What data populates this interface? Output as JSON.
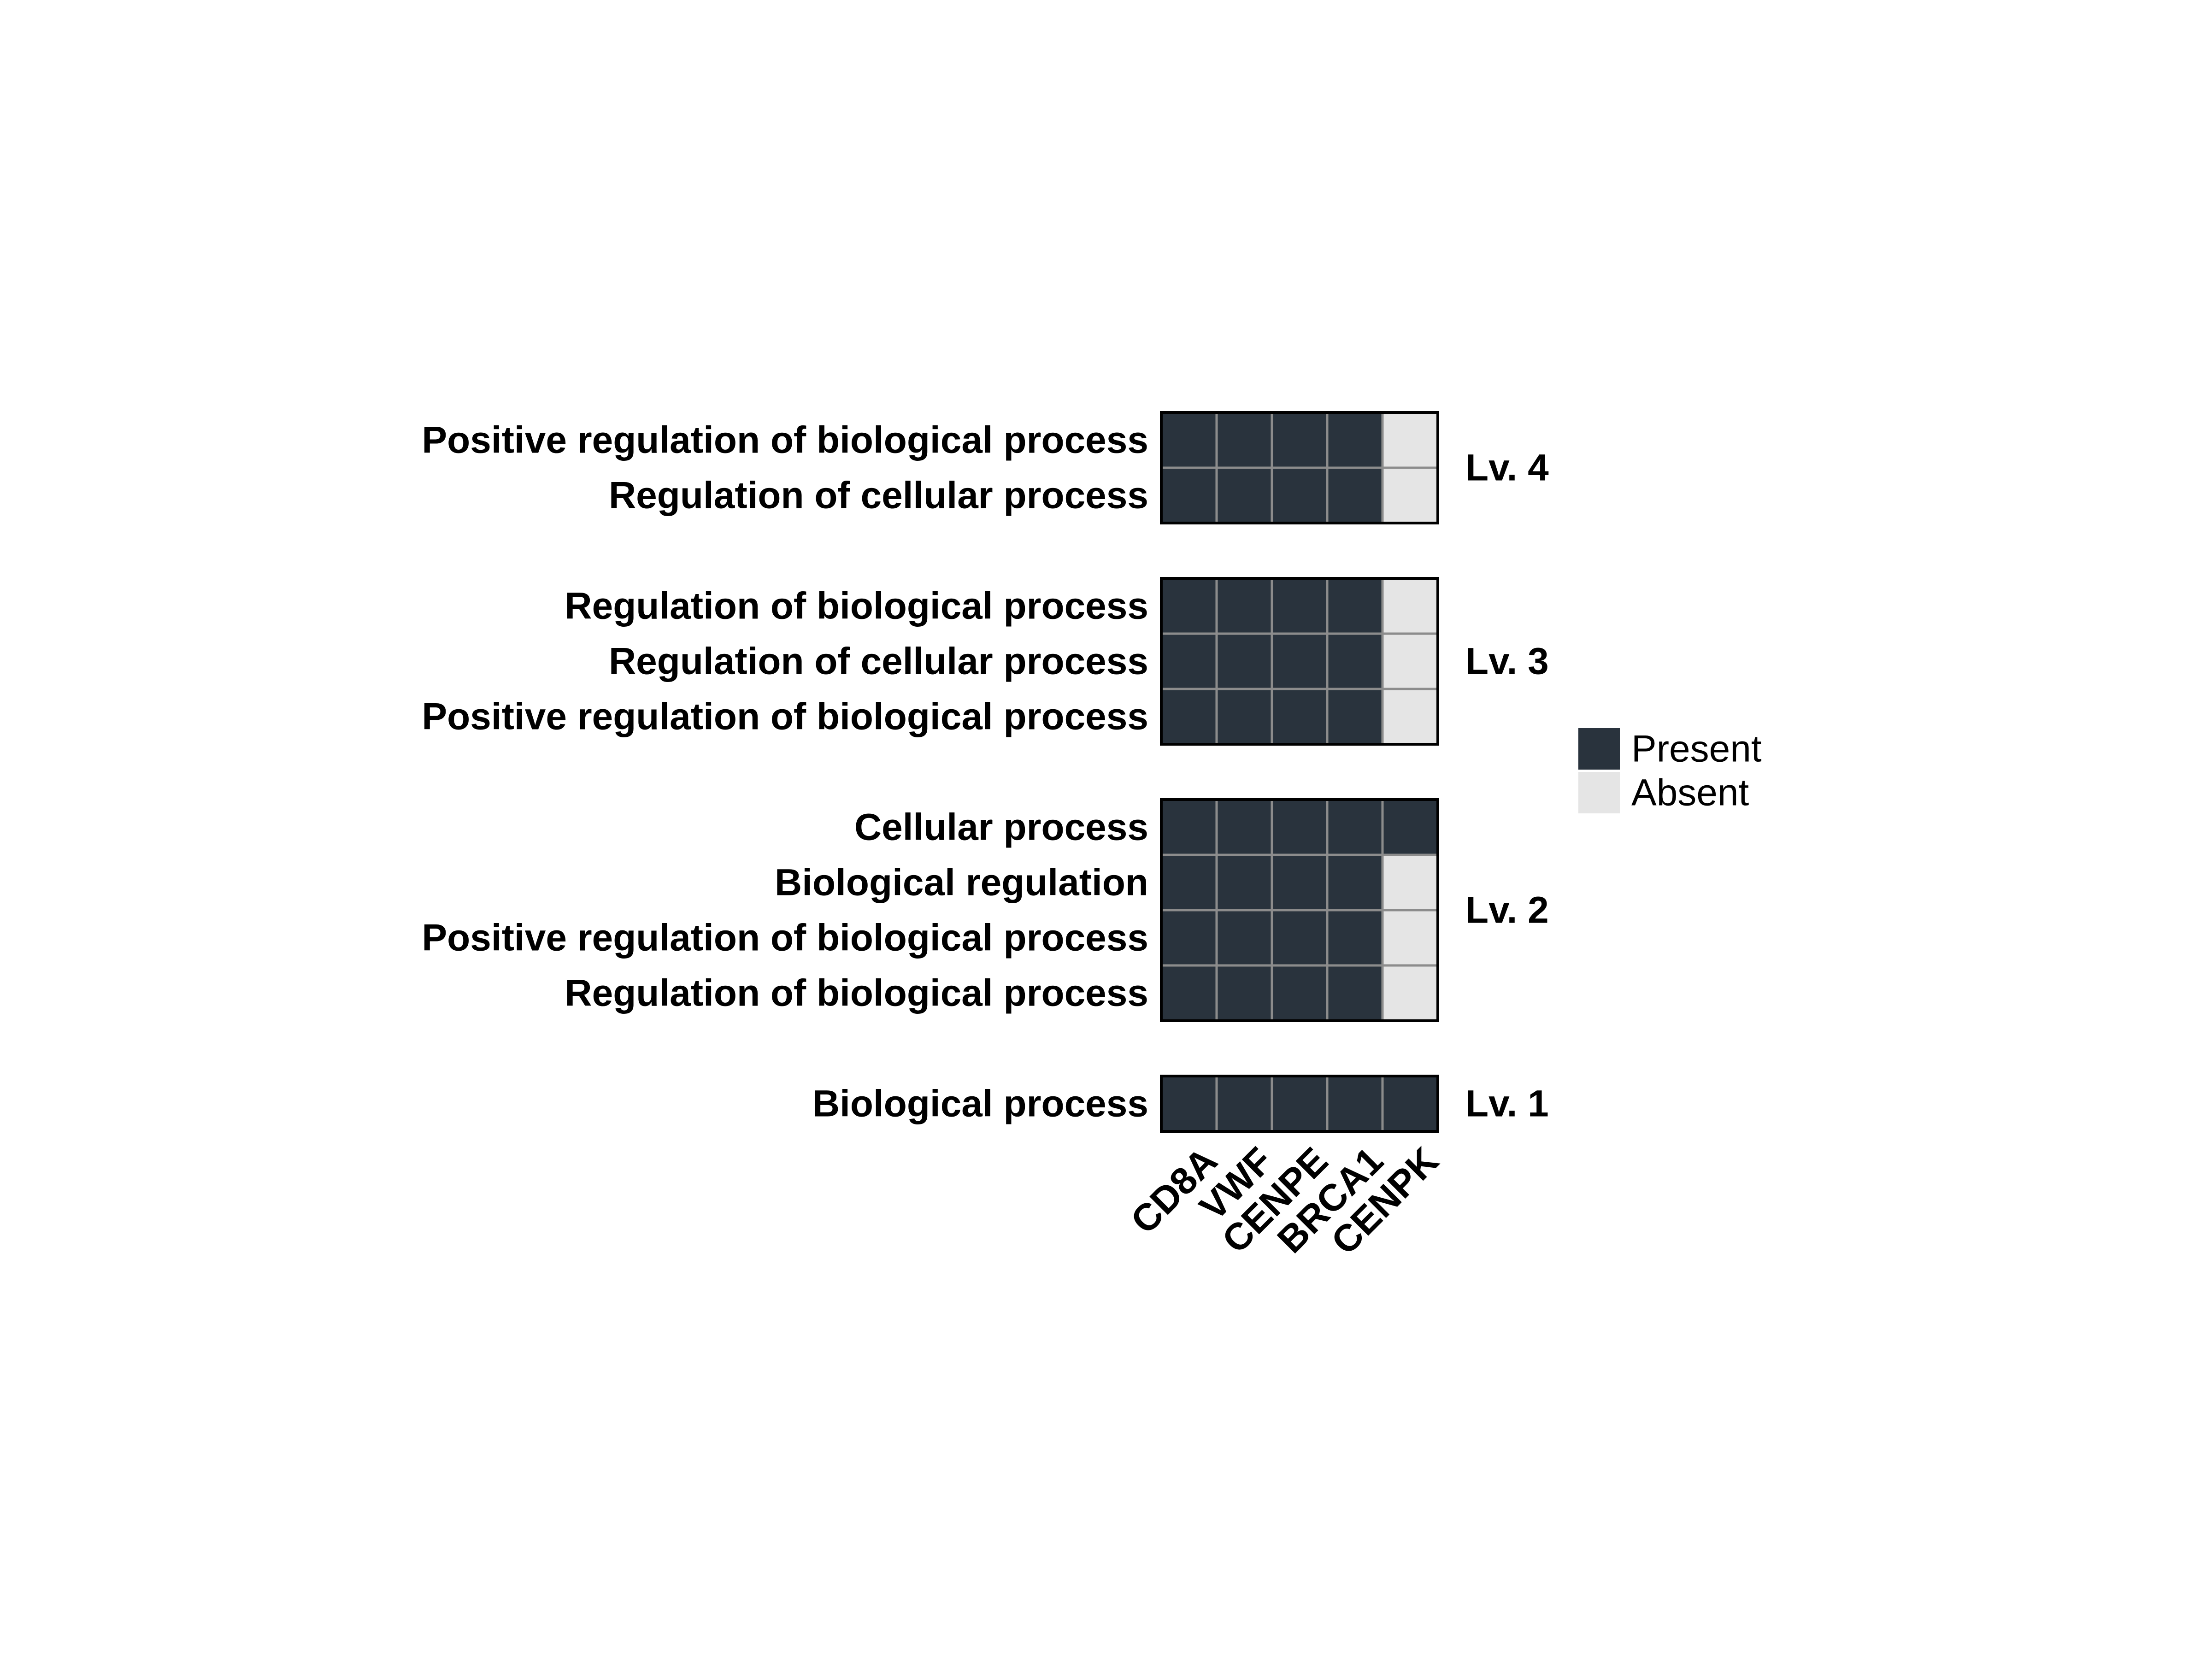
{
  "chart_data": {
    "type": "heatmap",
    "title": "",
    "xlabel": "",
    "ylabel": "",
    "genes": [
      "CD8A",
      "VWF",
      "CENPE",
      "BRCA1",
      "CENPK"
    ],
    "groups": [
      {
        "level": "Lv. 4",
        "rows": [
          {
            "term": "Positive regulation of biological process",
            "values": [
              1,
              1,
              1,
              1,
              0
            ]
          },
          {
            "term": "Regulation of cellular process",
            "values": [
              1,
              1,
              1,
              1,
              0
            ]
          }
        ]
      },
      {
        "level": "Lv. 3",
        "rows": [
          {
            "term": "Regulation of biological process",
            "values": [
              1,
              1,
              1,
              1,
              0
            ]
          },
          {
            "term": "Regulation of cellular process",
            "values": [
              1,
              1,
              1,
              1,
              0
            ]
          },
          {
            "term": "Positive regulation of biological process",
            "values": [
              1,
              1,
              1,
              1,
              0
            ]
          }
        ]
      },
      {
        "level": "Lv. 2",
        "rows": [
          {
            "term": "Cellular process",
            "values": [
              1,
              1,
              1,
              1,
              1
            ]
          },
          {
            "term": "Biological regulation",
            "values": [
              1,
              1,
              1,
              1,
              0
            ]
          },
          {
            "term": "Positive regulation of biological process",
            "values": [
              1,
              1,
              1,
              1,
              0
            ]
          },
          {
            "term": "Regulation of biological process",
            "values": [
              1,
              1,
              1,
              1,
              0
            ]
          }
        ]
      },
      {
        "level": "Lv. 1",
        "rows": [
          {
            "term": "Biological process",
            "values": [
              1,
              1,
              1,
              1,
              1
            ]
          }
        ]
      }
    ],
    "legend": {
      "placement": "right",
      "entries": [
        {
          "label": "Present",
          "value": 1,
          "color": "#29333d"
        },
        {
          "label": "Absent",
          "value": 0,
          "color": "#e5e5e5"
        }
      ]
    },
    "grid": true
  },
  "colors": {
    "present": "#29333d",
    "absent": "#e5e5e5",
    "cell_border": "#8c8c8c",
    "group_border": "#000000"
  }
}
